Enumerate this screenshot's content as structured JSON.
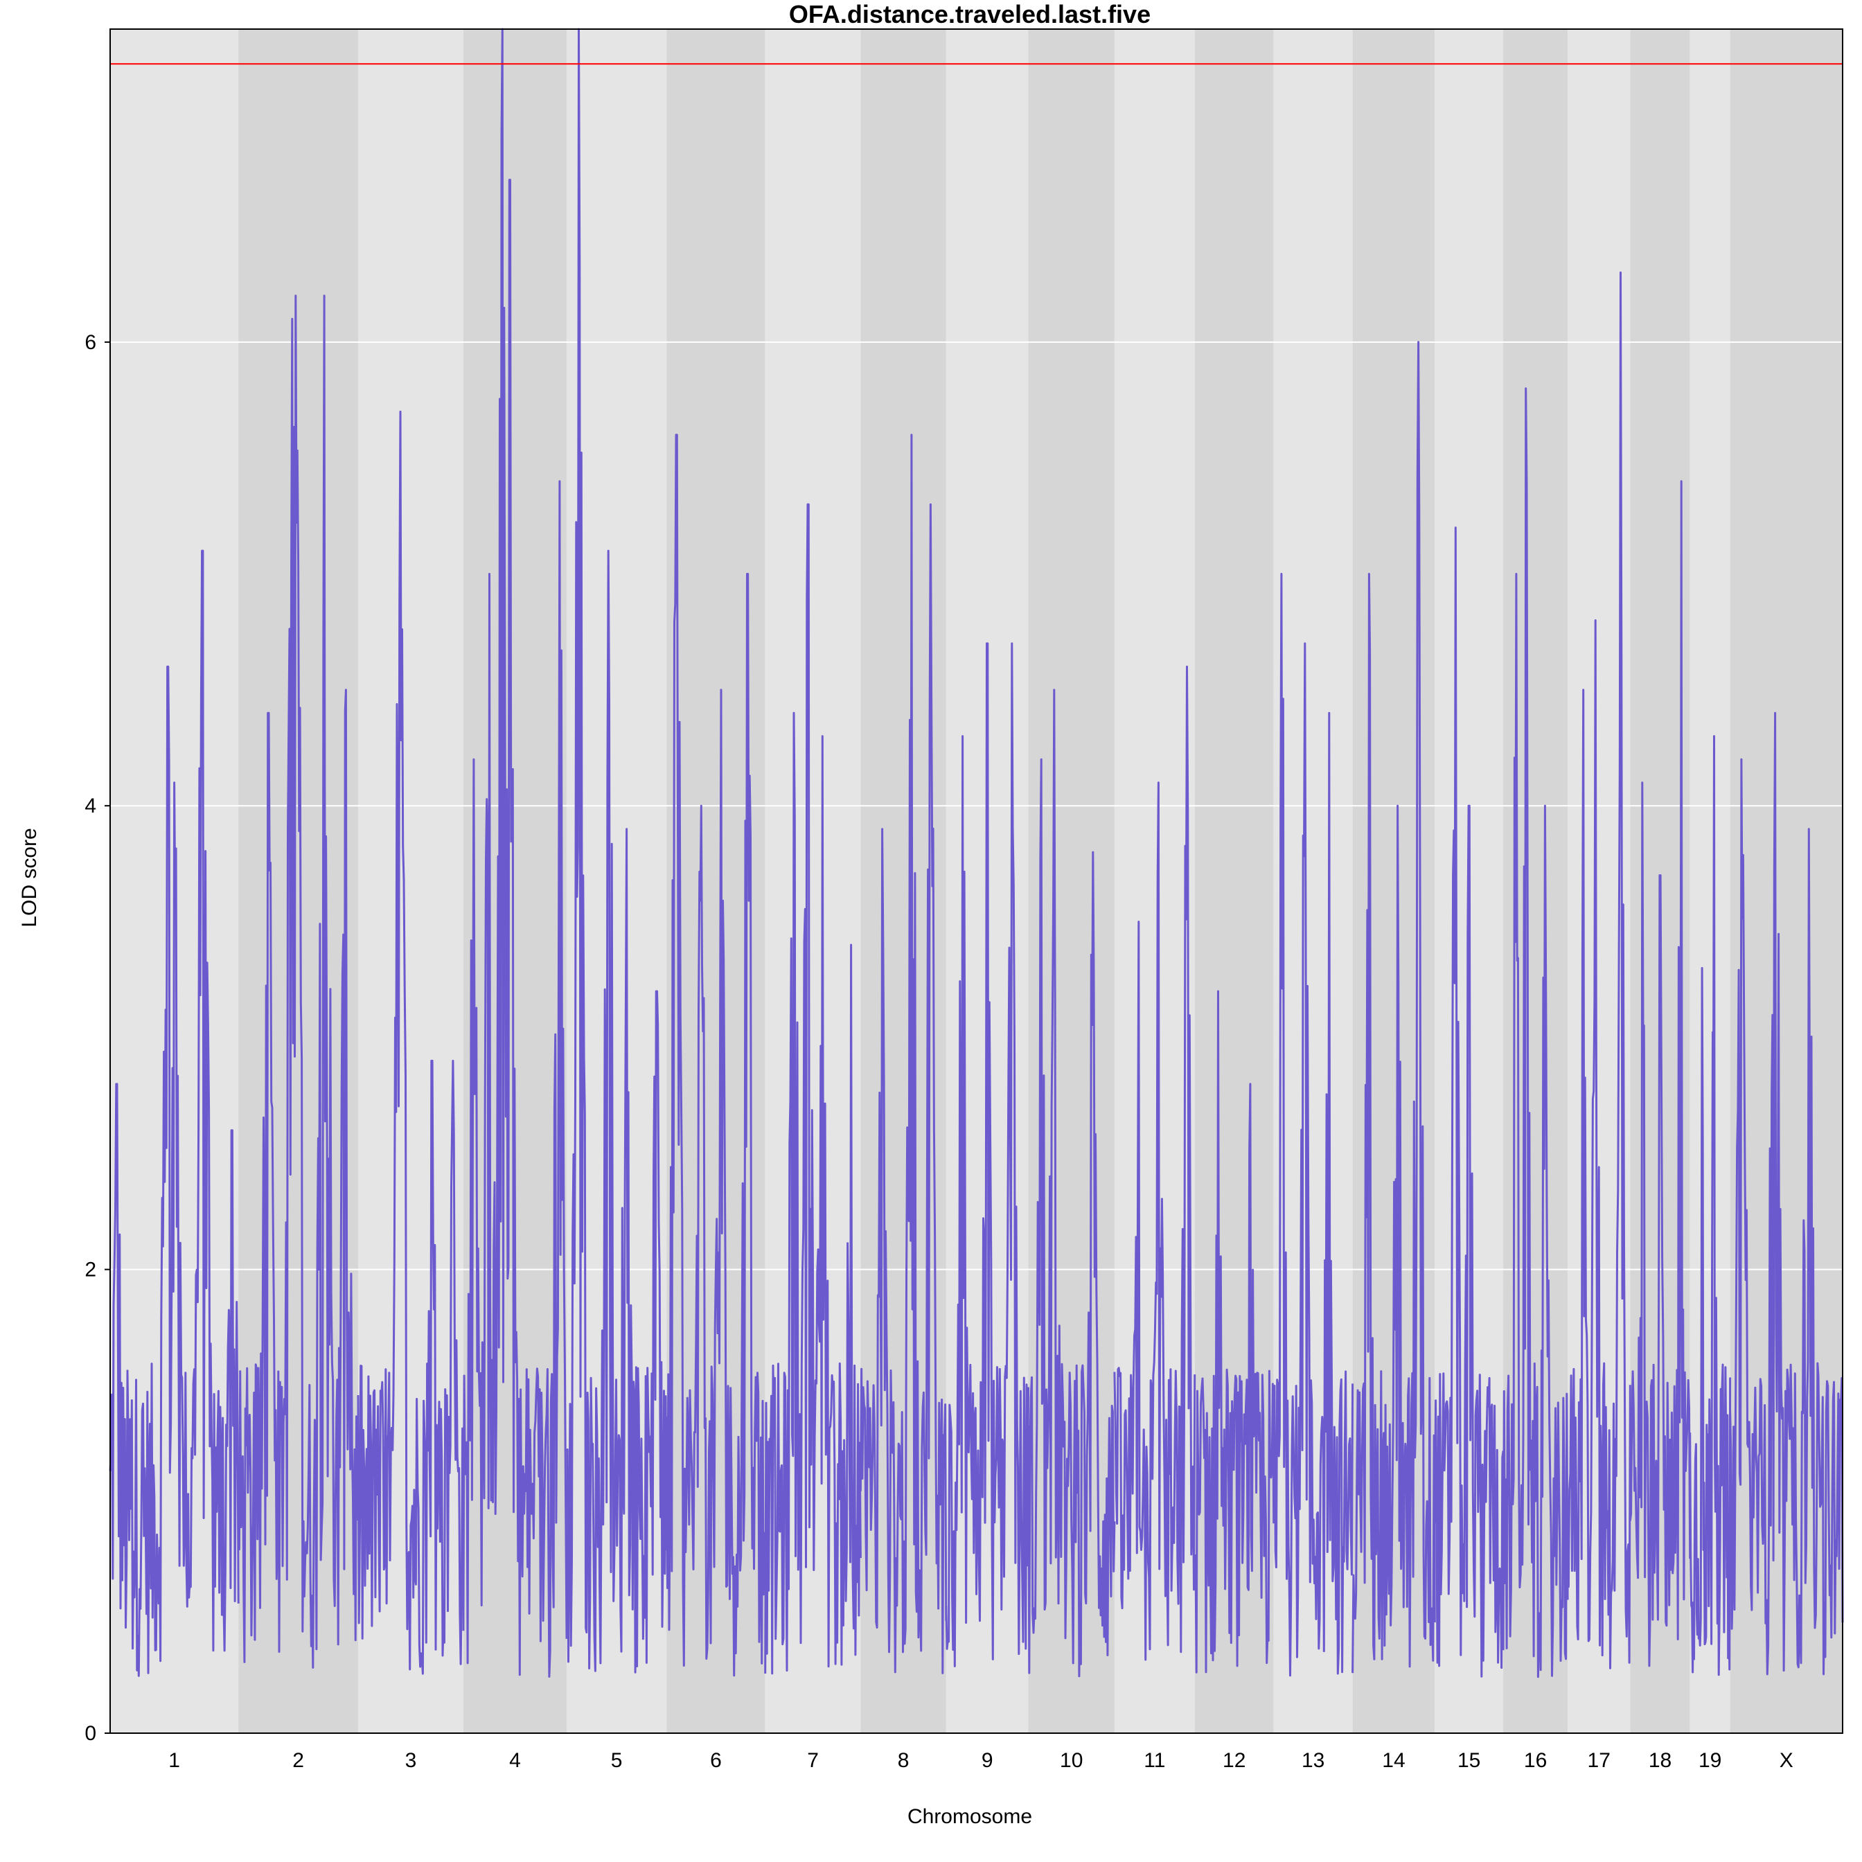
{
  "chart_data": {
    "type": "line",
    "title": "OFA.distance.traveled.last.five",
    "xlabel": "Chromosome",
    "ylabel": "LOD score",
    "ylim": [
      0,
      7.35
    ],
    "yticks": [
      0,
      2,
      4,
      6
    ],
    "grid": "horizontal",
    "threshold": 7.2,
    "colors": {
      "line": "#6a5acd",
      "threshold": "#ff0000",
      "band_light": "#e5e5e5",
      "band_dark": "#d6d6d6",
      "grid": "#ffffff"
    },
    "chromosomes": [
      {
        "label": "1",
        "length": 195,
        "peaks": [
          [
            0.05,
            2.8
          ],
          [
            0.45,
            4.6
          ],
          [
            0.5,
            4.1
          ],
          [
            0.72,
            5.1
          ],
          [
            0.95,
            2.6
          ]
        ]
      },
      {
        "label": "2",
        "length": 182,
        "peaks": [
          [
            0.25,
            4.4
          ],
          [
            0.45,
            6.1
          ],
          [
            0.48,
            6.2
          ],
          [
            0.72,
            6.2
          ],
          [
            0.9,
            4.5
          ]
        ]
      },
      {
        "label": "3",
        "length": 160,
        "peaks": [
          [
            0.4,
            5.7
          ],
          [
            0.7,
            2.9
          ],
          [
            0.9,
            2.9
          ]
        ]
      },
      {
        "label": "4",
        "length": 157,
        "peaks": [
          [
            0.1,
            4.2
          ],
          [
            0.25,
            5.0
          ],
          [
            0.38,
            7.35
          ],
          [
            0.45,
            6.7
          ],
          [
            0.93,
            5.4
          ]
        ]
      },
      {
        "label": "5",
        "length": 152,
        "peaks": [
          [
            0.12,
            7.35
          ],
          [
            0.42,
            5.1
          ],
          [
            0.6,
            3.9
          ],
          [
            0.9,
            3.2
          ]
        ]
      },
      {
        "label": "6",
        "length": 150,
        "peaks": [
          [
            0.1,
            5.6
          ],
          [
            0.35,
            4.0
          ],
          [
            0.55,
            4.5
          ],
          [
            0.82,
            5.0
          ]
        ]
      },
      {
        "label": "7",
        "length": 145,
        "peaks": [
          [
            0.3,
            4.4
          ],
          [
            0.45,
            5.3
          ],
          [
            0.6,
            4.3
          ],
          [
            0.9,
            3.4
          ]
        ]
      },
      {
        "label": "8",
        "length": 130,
        "peaks": [
          [
            0.25,
            3.9
          ],
          [
            0.6,
            5.6
          ],
          [
            0.82,
            5.3
          ]
        ]
      },
      {
        "label": "9",
        "length": 125,
        "peaks": [
          [
            0.2,
            4.3
          ],
          [
            0.5,
            4.7
          ],
          [
            0.8,
            4.7
          ]
        ]
      },
      {
        "label": "10",
        "length": 131,
        "peaks": [
          [
            0.15,
            4.2
          ],
          [
            0.3,
            4.5
          ],
          [
            0.75,
            3.8
          ]
        ]
      },
      {
        "label": "11",
        "length": 122,
        "peaks": [
          [
            0.3,
            3.5
          ],
          [
            0.55,
            4.1
          ],
          [
            0.9,
            4.6
          ]
        ]
      },
      {
        "label": "12",
        "length": 120,
        "peaks": [
          [
            0.3,
            3.2
          ],
          [
            0.7,
            2.8
          ]
        ]
      },
      {
        "label": "13",
        "length": 120,
        "peaks": [
          [
            0.1,
            5.0
          ],
          [
            0.4,
            4.7
          ],
          [
            0.7,
            4.4
          ]
        ]
      },
      {
        "label": "14",
        "length": 125,
        "peaks": [
          [
            0.2,
            5.0
          ],
          [
            0.55,
            4.0
          ],
          [
            0.8,
            6.0
          ]
        ]
      },
      {
        "label": "15",
        "length": 104,
        "peaks": [
          [
            0.3,
            5.2
          ],
          [
            0.5,
            4.0
          ]
        ]
      },
      {
        "label": "16",
        "length": 98,
        "peaks": [
          [
            0.2,
            5.0
          ],
          [
            0.35,
            5.8
          ],
          [
            0.65,
            4.0
          ]
        ]
      },
      {
        "label": "17",
        "length": 95,
        "peaks": [
          [
            0.25,
            4.5
          ],
          [
            0.45,
            4.8
          ],
          [
            0.85,
            6.3
          ]
        ]
      },
      {
        "label": "18",
        "length": 91,
        "peaks": [
          [
            0.2,
            4.1
          ],
          [
            0.5,
            3.7
          ],
          [
            0.85,
            5.4
          ]
        ]
      },
      {
        "label": "19",
        "length": 61,
        "peaks": [
          [
            0.3,
            3.3
          ],
          [
            0.6,
            4.3
          ]
        ]
      },
      {
        "label": "X",
        "length": 171,
        "peaks": [
          [
            0.1,
            4.2
          ],
          [
            0.4,
            4.4
          ],
          [
            0.7,
            3.9
          ]
        ]
      }
    ]
  }
}
